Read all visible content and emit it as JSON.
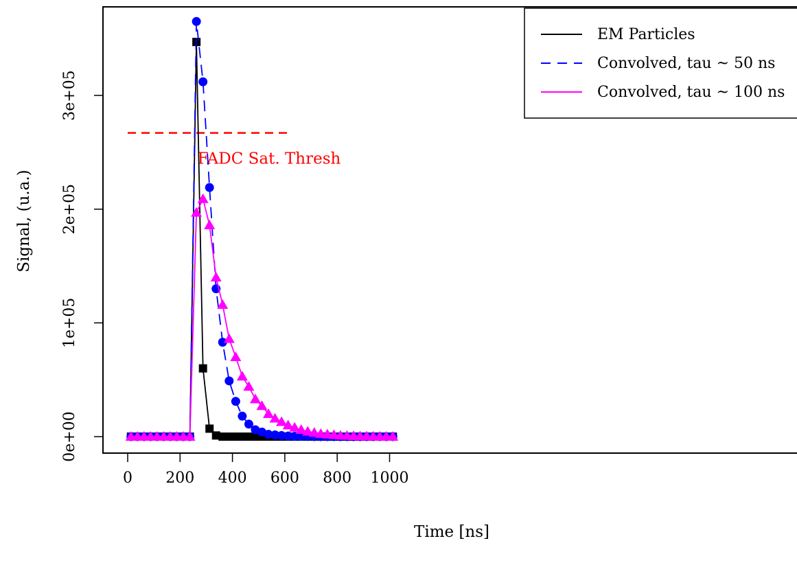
{
  "chart_data": {
    "type": "line",
    "title": "",
    "xlabel": "Time [ns]",
    "ylabel": "Signal, (u.a.)",
    "xlim": [
      -40,
      1030
    ],
    "ylim": [
      -15000,
      380000
    ],
    "xticks": [
      0,
      200,
      400,
      600,
      800,
      1000
    ],
    "xtick_labels": [
      "0",
      "200",
      "400",
      "600",
      "800",
      "1000"
    ],
    "yticks": [
      0,
      100000,
      200000,
      300000
    ],
    "ytick_labels": [
      "0e+00",
      "1e+05",
      "2e+05",
      "3e+05"
    ],
    "grid": false,
    "legend_position": "top-right",
    "x": [
      12.5,
      37.5,
      62.5,
      87.5,
      112.5,
      137.5,
      162.5,
      187.5,
      212.5,
      237.5,
      262.5,
      287.5,
      312.5,
      337.5,
      362.5,
      387.5,
      412.5,
      437.5,
      462.5,
      487.5,
      512.5,
      537.5,
      562.5,
      587.5,
      612.5,
      637.5,
      662.5,
      687.5,
      712.5,
      737.5,
      762.5,
      787.5,
      812.5,
      837.5,
      862.5,
      887.5,
      912.5,
      937.5,
      962.5,
      987.5,
      1012.5
    ],
    "series": [
      {
        "name": "EM Particles",
        "color": "#000000",
        "line_style": "solid",
        "marker": "square",
        "values": [
          0,
          0,
          0,
          0,
          0,
          0,
          0,
          0,
          0,
          0,
          347000,
          60000,
          7000,
          1000,
          0,
          0,
          0,
          0,
          0,
          0,
          0,
          0,
          0,
          0,
          0,
          0,
          0,
          0,
          0,
          0,
          0,
          0,
          0,
          0,
          0,
          0,
          0,
          0,
          0,
          0,
          0
        ]
      },
      {
        "name": "Convolved, tau ~ 50 ns",
        "color": "#0000ff",
        "line_style": "dashed",
        "marker": "circle",
        "values": [
          0,
          0,
          0,
          0,
          0,
          0,
          0,
          0,
          0,
          0,
          365000,
          312000,
          219000,
          130000,
          83000,
          49000,
          31000,
          18000,
          11000,
          6000,
          4000,
          2000,
          1500,
          1000,
          500,
          300,
          200,
          100,
          0,
          0,
          0,
          0,
          0,
          0,
          0,
          0,
          0,
          0,
          0,
          0,
          0
        ]
      },
      {
        "name": "Convolved, tau ~ 100 ns",
        "color": "#ff00ff",
        "line_style": "solid",
        "marker": "triangle",
        "values": [
          0,
          0,
          0,
          0,
          0,
          0,
          0,
          0,
          0,
          0,
          197000,
          209000,
          186000,
          140000,
          116000,
          86000,
          70000,
          53000,
          44000,
          33000,
          27000,
          20000,
          16000,
          13000,
          10000,
          8000,
          6000,
          4500,
          3500,
          2500,
          2000,
          1500,
          1000,
          800,
          600,
          400,
          300,
          200,
          100,
          100,
          0
        ]
      }
    ],
    "reference_line": {
      "y": 267000,
      "x_range": [
        0,
        610
      ],
      "color": "#ff0000",
      "line_style": "dashed",
      "label": "FADC Sat. Thresh",
      "label_x": 540,
      "label_y": 240000
    }
  }
}
